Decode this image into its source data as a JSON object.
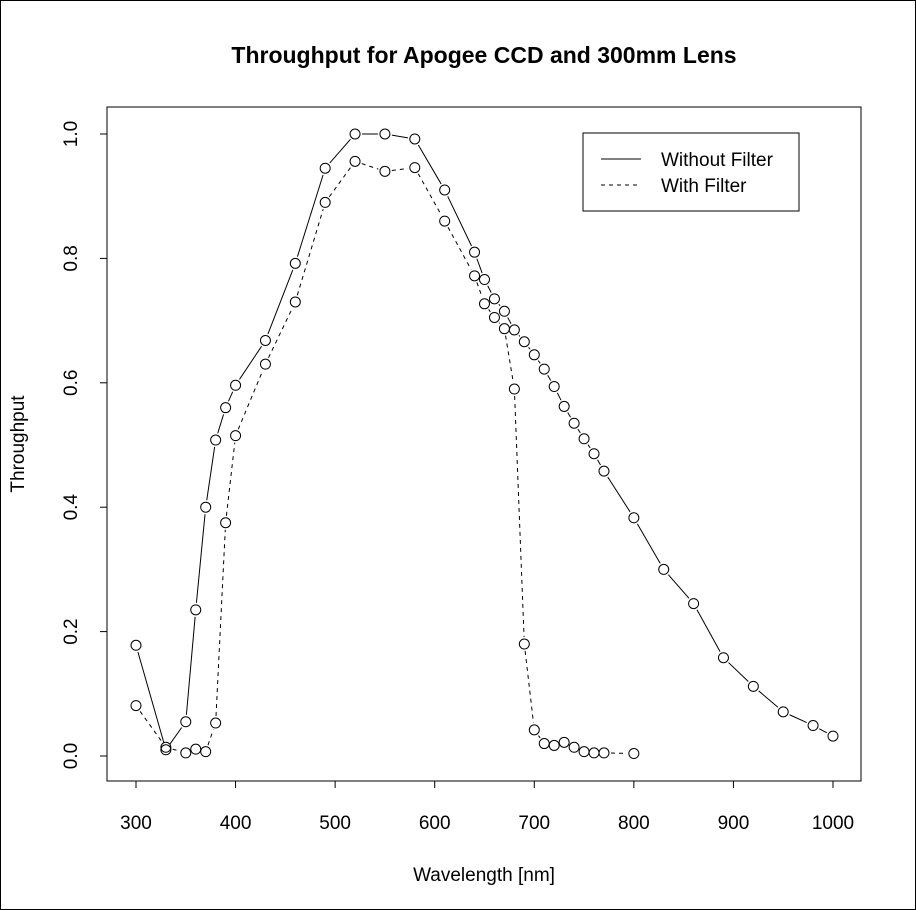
{
  "chart_data": {
    "type": "line",
    "title": "Throughput for Apogee CCD and 300mm Lens",
    "xlabel": "Wavelength [nm]",
    "ylabel": "Throughput",
    "xlim": [
      300,
      1000
    ],
    "ylim": [
      0,
      1
    ],
    "xticks": [
      "300",
      "400",
      "500",
      "600",
      "700",
      "800",
      "900",
      "1000"
    ],
    "yticks": [
      "0.0",
      "0.2",
      "0.4",
      "0.6",
      "0.8",
      "1.0"
    ],
    "grid": false,
    "legend_position": "top-right",
    "series": [
      {
        "name": "Without Filter",
        "line_style": "solid",
        "x": [
          300,
          330,
          350,
          360,
          370,
          380,
          390,
          400,
          430,
          460,
          490,
          520,
          550,
          580,
          610,
          640,
          650,
          660,
          670,
          680,
          690,
          700,
          710,
          720,
          730,
          740,
          750,
          760,
          770,
          800,
          830,
          860,
          890,
          920,
          950,
          980,
          1000
        ],
        "y": [
          0.178,
          0.01,
          0.055,
          0.235,
          0.4,
          0.508,
          0.56,
          0.596,
          0.668,
          0.792,
          0.945,
          1.0,
          1.0,
          0.992,
          0.91,
          0.81,
          0.766,
          0.735,
          0.715,
          0.685,
          0.666,
          0.645,
          0.622,
          0.594,
          0.562,
          0.535,
          0.51,
          0.486,
          0.458,
          0.383,
          0.3,
          0.245,
          0.158,
          0.112,
          0.071,
          0.049,
          0.032
        ]
      },
      {
        "name": "With Filter",
        "line_style": "dashed",
        "x": [
          300,
          330,
          350,
          360,
          370,
          380,
          390,
          400,
          430,
          460,
          490,
          520,
          550,
          580,
          610,
          640,
          650,
          660,
          670,
          680,
          690,
          700,
          710,
          720,
          730,
          740,
          750,
          760,
          770,
          800
        ],
        "y": [
          0.081,
          0.014,
          0.005,
          0.011,
          0.007,
          0.053,
          0.375,
          0.515,
          0.63,
          0.73,
          0.89,
          0.956,
          0.94,
          0.946,
          0.86,
          0.772,
          0.727,
          0.705,
          0.687,
          0.59,
          0.18,
          0.042,
          0.02,
          0.017,
          0.022,
          0.014,
          0.007,
          0.005,
          0.005,
          0.004
        ]
      }
    ]
  }
}
